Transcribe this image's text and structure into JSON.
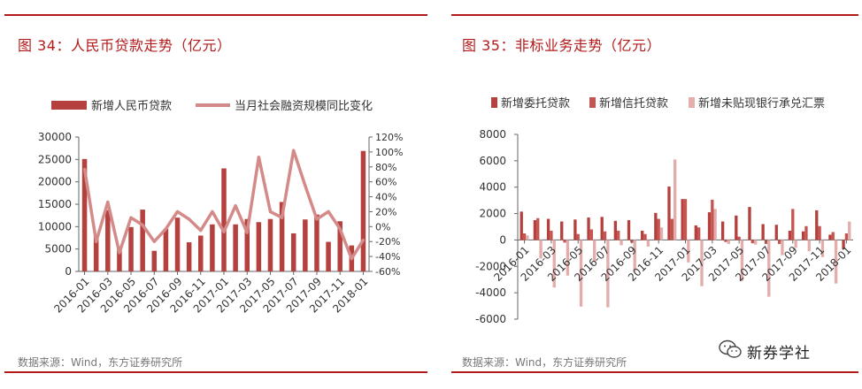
{
  "left_panel": {
    "title": "图 34：人民币贷款走势（亿元）",
    "source": "数据来源：Wind，东方证券研究所"
  },
  "right_panel": {
    "title": "图 35：非标业务走势（亿元）",
    "source": "数据来源：Wind，东方证券研究所"
  },
  "watermark": {
    "text": "新券学社"
  },
  "colors": {
    "accent": "#b31b1b",
    "bar1": "#b5413f",
    "line1": "#d48a89",
    "bar2": "#b5413f",
    "bar3": "#c65552",
    "bar4": "#e3adab"
  },
  "chart_data": [
    {
      "type": "bar+line",
      "title": "人民币贷款走势（亿元）",
      "categories": [
        "2016-01",
        "2016-02",
        "2016-03",
        "2016-04",
        "2016-05",
        "2016-06",
        "2016-07",
        "2016-08",
        "2016-09",
        "2016-10",
        "2016-11",
        "2016-12",
        "2017-01",
        "2017-02",
        "2017-03",
        "2017-04",
        "2017-05",
        "2017-06",
        "2017-07",
        "2017-08",
        "2017-09",
        "2017-10",
        "2017-11",
        "2017-12",
        "2018-01"
      ],
      "tick_labels": [
        "2016-01",
        "2016-03",
        "2016-05",
        "2016-07",
        "2016-09",
        "2016-11",
        "2017-01",
        "2017-03",
        "2017-05",
        "2017-07",
        "2017-09",
        "2017-11",
        "2018-01"
      ],
      "series": [
        {
          "name": "新增人民币贷款",
          "kind": "bar",
          "axis": "left",
          "values": [
            25100,
            8100,
            13700,
            5600,
            9900,
            13800,
            4600,
            9500,
            12000,
            6500,
            8000,
            10500,
            23000,
            10500,
            11700,
            11000,
            11700,
            15500,
            8500,
            11600,
            12700,
            6600,
            11200,
            5800,
            26900
          ]
        },
        {
          "name": "当月社会融资规模同比变化",
          "kind": "line",
          "axis": "right",
          "values": [
            0.77,
            -0.2,
            0.33,
            -0.35,
            0.12,
            0.02,
            -0.2,
            -0.03,
            0.2,
            0.1,
            -0.05,
            0.2,
            -0.07,
            0.28,
            -0.08,
            0.93,
            0.2,
            0.12,
            1.02,
            0.55,
            0.1,
            0.2,
            -0.03,
            -0.43,
            -0.18
          ]
        }
      ],
      "y_left": {
        "min": 0,
        "max": 30000,
        "ticks": [
          0,
          5000,
          10000,
          15000,
          20000,
          25000,
          30000
        ]
      },
      "y_right": {
        "min": -0.6,
        "max": 1.2,
        "ticks": [
          "-60%",
          "-40%",
          "-20%",
          "0%",
          "20%",
          "40%",
          "60%",
          "80%",
          "100%",
          "120%"
        ]
      },
      "legend_position": "top"
    },
    {
      "type": "bar",
      "title": "非标业务走势（亿元）",
      "categories": [
        "2016-01",
        "2016-02",
        "2016-03",
        "2016-04",
        "2016-05",
        "2016-06",
        "2016-07",
        "2016-08",
        "2016-09",
        "2016-10",
        "2016-11",
        "2016-12",
        "2017-01",
        "2017-02",
        "2017-03",
        "2017-04",
        "2017-05",
        "2017-06",
        "2017-07",
        "2017-08",
        "2017-09",
        "2017-10",
        "2017-11",
        "2017-12",
        "2018-01"
      ],
      "tick_labels": [
        "2016-01",
        "2016-03",
        "2016-05",
        "2016-07",
        "2016-09",
        "2016-11",
        "2017-01",
        "2017-03",
        "2017-05",
        "2017-07",
        "2017-09",
        "2017-11",
        "2018-01"
      ],
      "series": [
        {
          "name": "新增委托贷款",
          "values": [
            2150,
            1500,
            1600,
            1400,
            1550,
            1700,
            1750,
            1450,
            1500,
            700,
            2050,
            4050,
            3100,
            1100,
            2100,
            1400,
            1850,
            2500,
            1200,
            1150,
            700,
            650,
            2250,
            400,
            -700
          ]
        },
        {
          "name": "新增信托贷款",
          "values": [
            500,
            1650,
            700,
            -200,
            450,
            800,
            650,
            700,
            -200,
            450,
            1600,
            1600,
            3100,
            950,
            3050,
            -150,
            250,
            -250,
            -300,
            -300,
            2350,
            1050,
            1050,
            600,
            500
          ]
        },
        {
          "name": "新增未贴现银行承兑汇票",
          "values": [
            350,
            -1400,
            -3600,
            -2700,
            -5050,
            -1600,
            -5100,
            -400,
            -2400,
            -500,
            950,
            6100,
            -1700,
            -3500,
            2350,
            -300,
            -3100,
            -350,
            -4300,
            -1150,
            -600,
            -850,
            -1300,
            -3300,
            1400
          ]
        }
      ],
      "y_axis": {
        "min": -6000,
        "max": 8000,
        "ticks": [
          -6000,
          -4000,
          -2000,
          0,
          2000,
          4000,
          6000,
          8000
        ]
      },
      "legend_position": "top"
    }
  ]
}
